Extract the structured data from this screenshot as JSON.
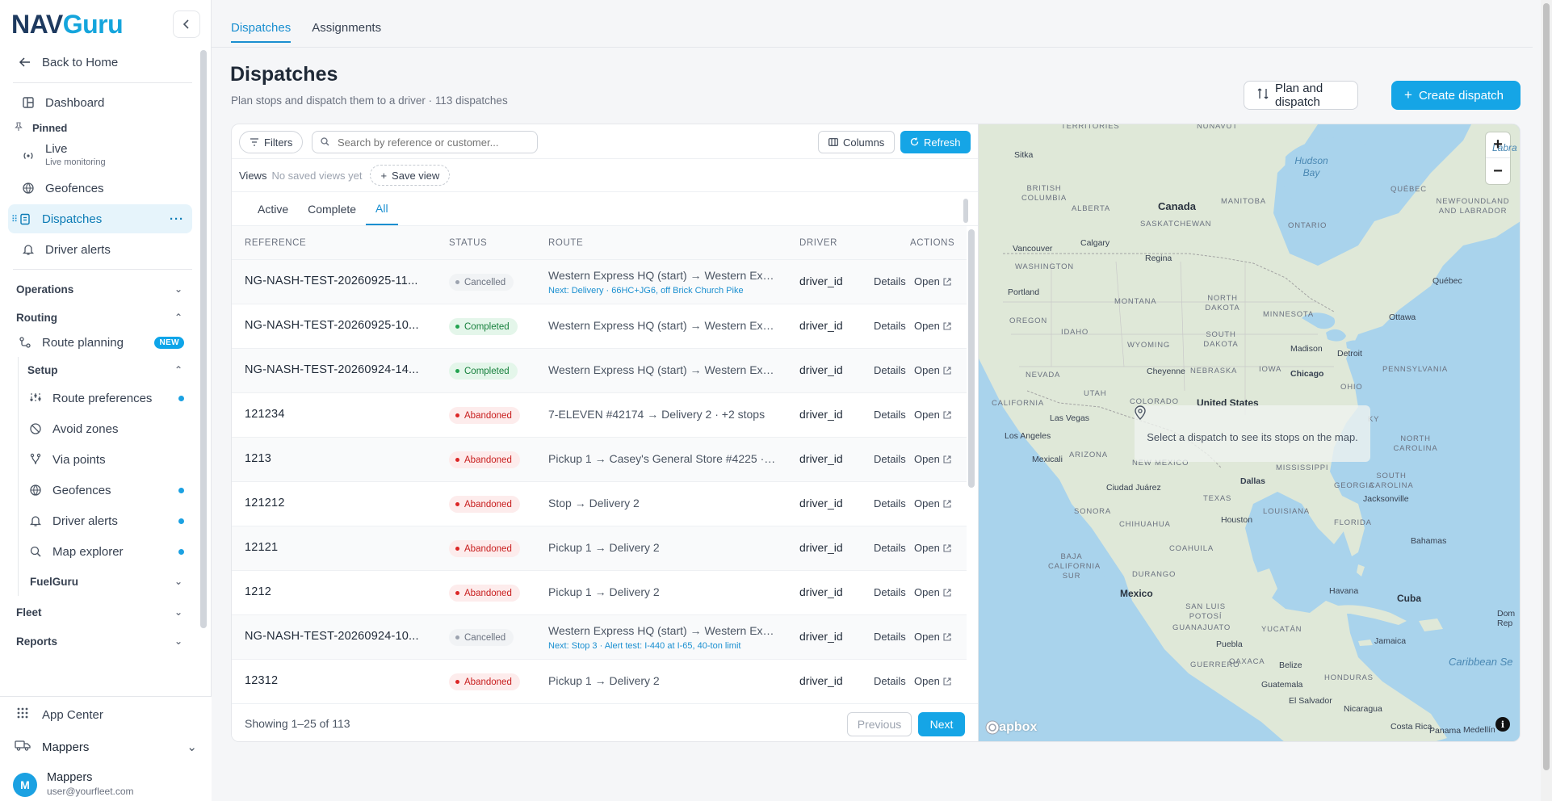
{
  "brand": {
    "logo_part1": "N",
    "logo_part2": "A",
    "logo_part3": "V",
    "logo_part4": "Guru"
  },
  "sidebar": {
    "back": "Back to Home",
    "dashboard": "Dashboard",
    "pinned_label": "Pinned",
    "live": "Live",
    "live_sub": "Live monitoring",
    "geofences": "Geofences",
    "dispatches": "Dispatches",
    "driver_alerts": "Driver alerts",
    "operations": "Operations",
    "routing": "Routing",
    "route_planning": "Route planning",
    "new_badge": "NEW",
    "setup": "Setup",
    "route_preferences": "Route preferences",
    "avoid_zones": "Avoid zones",
    "via_points": "Via points",
    "setup_geofences": "Geofences",
    "setup_driver_alerts": "Driver alerts",
    "map_explorer": "Map explorer",
    "fuelguru": "FuelGuru",
    "fleet": "Fleet",
    "reports": "Reports",
    "app_center": "App Center",
    "org_name": "Mappers",
    "user_name": "Mappers",
    "user_email": "user@yourfleet.com",
    "avatar_letter": "M"
  },
  "top_tabs": [
    "Dispatches",
    "Assignments"
  ],
  "header": {
    "title": "Dispatches",
    "subtitle": "Plan stops and dispatch them to a driver · 113 dispatches",
    "plan_button": "Plan and dispatch",
    "create_button": "Create dispatch"
  },
  "toolbar": {
    "filters": "Filters",
    "search_placeholder": "Search by reference or customer...",
    "columns": "Columns",
    "refresh": "Refresh",
    "views_label": "Views",
    "views_none": "No saved views yet",
    "save_view": "Save view"
  },
  "sub_tabs": [
    "Active",
    "Complete",
    "All"
  ],
  "columns": [
    "REFERENCE",
    "STATUS",
    "ROUTE",
    "DRIVER",
    "ACTIONS"
  ],
  "rows": [
    {
      "ref": "NG-NASH-TEST-20260925-11...",
      "status": "Cancelled",
      "route": "Western Express HQ (start) → Western Exp...",
      "next": "Next: Delivery · 66HC+JG6, off Brick Church Pike",
      "driver": "driver_id",
      "details": "Details",
      "open": "Open"
    },
    {
      "ref": "NG-NASH-TEST-20260925-10...",
      "status": "Completed",
      "route": "Western Express HQ (start) → Western Exp...",
      "next": "",
      "driver": "driver_id",
      "details": "Details",
      "open": "Open"
    },
    {
      "ref": "NG-NASH-TEST-20260924-14...",
      "status": "Completed",
      "route": "Western Express HQ (start) → Western Exp...",
      "next": "",
      "driver": "driver_id",
      "details": "Details",
      "open": "Open"
    },
    {
      "ref": "121234",
      "status": "Abandoned",
      "route": "7-ELEVEN #42174 → Delivery 2 · +2 stops",
      "next": "",
      "driver": "driver_id",
      "details": "Details",
      "open": "Open"
    },
    {
      "ref": "1213",
      "status": "Abandoned",
      "route": "Pickup 1 → Casey's General Store #4225 · ...",
      "next": "",
      "driver": "driver_id",
      "details": "Details",
      "open": "Open"
    },
    {
      "ref": "121212",
      "status": "Abandoned",
      "route": "Stop → Delivery 2",
      "next": "",
      "driver": "driver_id",
      "details": "Details",
      "open": "Open"
    },
    {
      "ref": "12121",
      "status": "Abandoned",
      "route": "Pickup 1 → Delivery 2",
      "next": "",
      "driver": "driver_id",
      "details": "Details",
      "open": "Open"
    },
    {
      "ref": "1212",
      "status": "Abandoned",
      "route": "Pickup 1 → Delivery 2",
      "next": "",
      "driver": "driver_id",
      "details": "Details",
      "open": "Open"
    },
    {
      "ref": "NG-NASH-TEST-20260924-10...",
      "status": "Cancelled",
      "route": "Western Express HQ (start) → Western Exp...",
      "next": "Next: Stop 3 · Alert test: I-440 at I-65, 40-ton limit",
      "driver": "driver_id",
      "details": "Details",
      "open": "Open"
    },
    {
      "ref": "12312",
      "status": "Abandoned",
      "route": "Pickup 1 → Delivery 2",
      "next": "",
      "driver": "driver_id",
      "details": "Details",
      "open": "Open"
    }
  ],
  "pagination": {
    "showing": "Showing 1–25 of 113",
    "previous": "Previous",
    "next": "Next"
  },
  "map": {
    "message": "Select a dispatch to see its stops on the map.",
    "attribution": "mapbox",
    "info": "i",
    "zoom_in": "+",
    "zoom_out": "−",
    "labels": {
      "hudson_bay": "Hudson Bay",
      "labrador": "Labra",
      "canada": "Canada",
      "united_states": "United States",
      "mexico": "Mexico",
      "cuba": "Cuba",
      "territories": "TERRITORIES",
      "nunavut": "NUNAVUT",
      "sitka": "Sitka",
      "british_columbia": "BRITISH COLUMBIA",
      "alberta": "ALBERTA",
      "saskatchewan": "SASKATCHEWAN",
      "manitoba": "MANITOBA",
      "ontario": "ONTARIO",
      "quebec_prov": "QUÉBEC",
      "newfoundland": "NEWFOUNDLAND AND LABRADOR",
      "vancouver": "Vancouver",
      "calgary": "Calgary",
      "regina": "Regina",
      "quebec": "Québec",
      "ottawa": "Ottawa",
      "portland": "Portland",
      "washington": "WASHINGTON",
      "montana": "MONTANA",
      "north_dakota": "NORTH DAKOTA",
      "minnesota": "MINNESOTA",
      "oregon": "OREGON",
      "idaho": "IDAHO",
      "south_dakota": "SOUTH DAKOTA",
      "wyoming": "WYOMING",
      "madison": "Madison",
      "detroit": "Detroit",
      "cheyenne": "Cheyenne",
      "nebraska": "NEBRASKA",
      "iowa": "IOWA",
      "chicago": "Chicago",
      "pennsylvania": "PENNSYLVANIA",
      "nevada": "NEVADA",
      "utah": "UTAH",
      "colorado": "COLORADO",
      "ohio": "OHIO",
      "california": "CALIFORNIA",
      "las_vegas": "Las Vegas",
      "ky": "KY",
      "los_angeles": "Los Angeles",
      "arizona": "ARIZONA",
      "new_mexico": "NEW MEXICO",
      "mexicali": "Mexicali",
      "north_carolina": "NORTH CAROLINA",
      "south_carolina": "SOUTH CAROLINA",
      "mississippi": "MISSISSIPPI",
      "dallas": "Dallas",
      "ciudad_juarez": "Ciudad Juárez",
      "texas": "TEXAS",
      "georgia": "GEORGIA",
      "jacksonville": "Jacksonville",
      "sonora": "SONORA",
      "louisiana": "LOUISIANA",
      "florida": "FLORIDA",
      "chihuahua": "CHIHUAHUA",
      "houston": "Houston",
      "coahuila": "COAHUILA",
      "bahamas": "Bahamas",
      "baja": "BAJA CALIFORNIA SUR",
      "durango": "DURANGO",
      "san_luis": "SAN LUIS POTOSÍ",
      "havana": "Havana",
      "guanajuato": "GUANAJUATO",
      "yucatan": "YUCATÁN",
      "jamaica": "Jamaica",
      "dom": "Dom Rep",
      "puebla": "Puebla",
      "belize": "Belize",
      "guerrero": "GUERRERO",
      "oaxaca": "OAXACA",
      "caribbean": "Caribbean Se",
      "guatemala": "Guatemala",
      "honduras": "HONDURAS",
      "el_salvador": "El Salvador",
      "nicaragua": "Nicaragua",
      "costa_rica": "Costa Rica",
      "panama": "Panama",
      "medellin": "Medellín"
    }
  },
  "colors": {
    "accent": "#15a5e6",
    "brand_dark": "#1e3a5f",
    "abandoned": "#c81e1e",
    "completed": "#17803d"
  }
}
